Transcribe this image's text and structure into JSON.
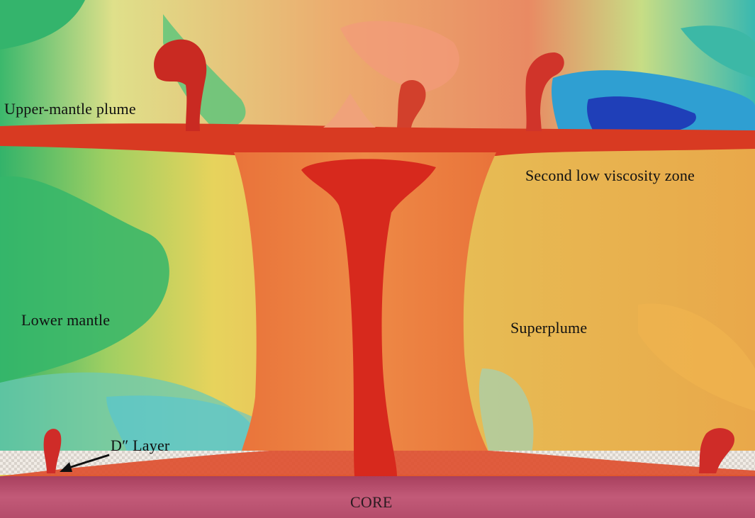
{
  "labels": {
    "upper_mantle_plume": "Upper-mantle plume",
    "second_low_viscosity_zone": "Second low viscosity zone",
    "lower_mantle": "Lower mantle",
    "superplume": "Superplume",
    "d_layer": "D″ Layer",
    "core": "CORE"
  },
  "colors": {
    "hot_red": "#d8301e",
    "warm_orange": "#e9753a",
    "yellow": "#e6d25a",
    "green": "#3fb86a",
    "cyan": "#6fd3d6",
    "blue": "#2d57c7",
    "core": "#b9506e"
  }
}
